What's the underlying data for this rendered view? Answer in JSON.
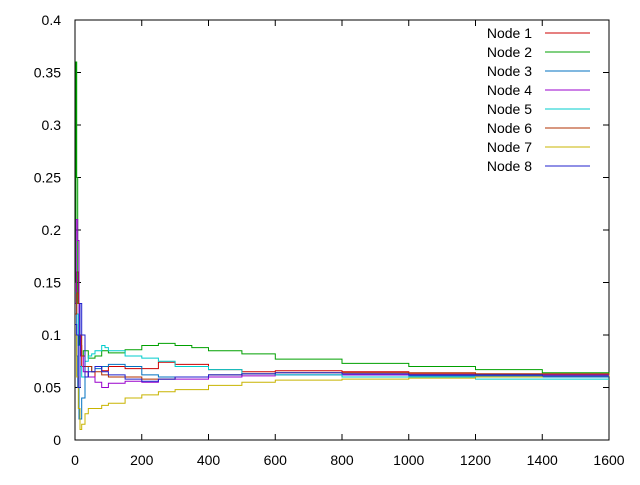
{
  "chart_data": {
    "type": "line",
    "title": "",
    "xlabel": "",
    "ylabel": "",
    "xlim": [
      0,
      1600
    ],
    "ylim": [
      0,
      0.4
    ],
    "grid": false,
    "legend_position": "top-right",
    "x_ticks": [
      0,
      200,
      400,
      600,
      800,
      1000,
      1200,
      1400,
      1600
    ],
    "y_ticks": [
      0,
      0.05,
      0.1,
      0.15,
      0.2,
      0.25,
      0.3,
      0.35,
      0.4
    ],
    "x_tick_labels": [
      "0",
      "200",
      "400",
      "600",
      "800",
      "1000",
      "1200",
      "1400",
      "1600"
    ],
    "y_tick_labels": [
      "0",
      "0.05",
      "0.1",
      "0.15",
      "0.2",
      "0.25",
      "0.3",
      "0.35",
      "0.4"
    ],
    "series": [
      {
        "name": "Node 1",
        "color": "#cc0000",
        "x": [
          1,
          5,
          10,
          15,
          20,
          30,
          40,
          60,
          80,
          100,
          150,
          200,
          250,
          300,
          400,
          500,
          600,
          800,
          1000,
          1200,
          1400,
          1600
        ],
        "y": [
          0.12,
          0.16,
          0.13,
          0.09,
          0.07,
          0.065,
          0.06,
          0.07,
          0.066,
          0.07,
          0.068,
          0.068,
          0.074,
          0.072,
          0.067,
          0.065,
          0.066,
          0.065,
          0.063,
          0.063,
          0.063,
          0.062
        ]
      },
      {
        "name": "Node 2",
        "color": "#00a000",
        "x": [
          1,
          3,
          5,
          8,
          12,
          18,
          25,
          40,
          60,
          80,
          100,
          150,
          200,
          250,
          300,
          350,
          400,
          500,
          600,
          800,
          1000,
          1200,
          1400,
          1600
        ],
        "y": [
          0.15,
          0.36,
          0.25,
          0.13,
          0.09,
          0.08,
          0.085,
          0.078,
          0.08,
          0.085,
          0.083,
          0.086,
          0.09,
          0.092,
          0.09,
          0.088,
          0.085,
          0.082,
          0.077,
          0.073,
          0.07,
          0.067,
          0.064,
          0.063
        ]
      },
      {
        "name": "Node 3",
        "color": "#0070c0",
        "x": [
          1,
          5,
          8,
          12,
          20,
          30,
          40,
          50,
          60,
          80,
          100,
          150,
          200,
          250,
          300,
          400,
          500,
          600,
          800,
          1000,
          1200,
          1400,
          1600
        ],
        "y": [
          0.12,
          0.08,
          0.05,
          0.02,
          0.04,
          0.06,
          0.07,
          0.065,
          0.068,
          0.07,
          0.072,
          0.07,
          0.062,
          0.06,
          0.06,
          0.062,
          0.063,
          0.062,
          0.062,
          0.061,
          0.061,
          0.06,
          0.06
        ]
      },
      {
        "name": "Node 4",
        "color": "#9900cc",
        "x": [
          1,
          4,
          8,
          12,
          18,
          25,
          40,
          60,
          80,
          100,
          150,
          200,
          250,
          300,
          400,
          500,
          600,
          800,
          1000,
          1200,
          1400,
          1600
        ],
        "y": [
          0.13,
          0.21,
          0.19,
          0.1,
          0.08,
          0.065,
          0.06,
          0.055,
          0.05,
          0.054,
          0.056,
          0.055,
          0.058,
          0.058,
          0.06,
          0.061,
          0.062,
          0.062,
          0.062,
          0.062,
          0.062,
          0.061
        ]
      },
      {
        "name": "Node 5",
        "color": "#00cccc",
        "x": [
          1,
          5,
          10,
          15,
          20,
          30,
          40,
          50,
          60,
          80,
          90,
          100,
          150,
          200,
          250,
          300,
          400,
          500,
          600,
          800,
          1000,
          1200,
          1400,
          1600
        ],
        "y": [
          0.14,
          0.12,
          0.09,
          0.07,
          0.06,
          0.075,
          0.08,
          0.082,
          0.085,
          0.09,
          0.088,
          0.085,
          0.08,
          0.078,
          0.075,
          0.07,
          0.067,
          0.063,
          0.062,
          0.06,
          0.06,
          0.058,
          0.058,
          0.058
        ]
      },
      {
        "name": "Node 6",
        "color": "#b03000",
        "x": [
          1,
          5,
          10,
          15,
          20,
          30,
          50,
          80,
          100,
          150,
          200,
          250,
          300,
          400,
          500,
          600,
          800,
          1000,
          1200,
          1400,
          1600
        ],
        "y": [
          0.12,
          0.14,
          0.13,
          0.1,
          0.08,
          0.07,
          0.065,
          0.062,
          0.06,
          0.06,
          0.058,
          0.058,
          0.06,
          0.062,
          0.063,
          0.064,
          0.064,
          0.064,
          0.063,
          0.063,
          0.062
        ]
      },
      {
        "name": "Node 7",
        "color": "#c8b400",
        "x": [
          1,
          5,
          10,
          15,
          20,
          30,
          40,
          60,
          80,
          100,
          150,
          200,
          250,
          300,
          400,
          500,
          600,
          800,
          1000,
          1200,
          1400,
          1600
        ],
        "y": [
          0.1,
          0.06,
          0.03,
          0.01,
          0.015,
          0.025,
          0.03,
          0.03,
          0.033,
          0.035,
          0.04,
          0.043,
          0.046,
          0.048,
          0.052,
          0.055,
          0.057,
          0.058,
          0.059,
          0.06,
          0.061,
          0.062
        ]
      },
      {
        "name": "Node 8",
        "color": "#2020cc",
        "x": [
          1,
          5,
          10,
          15,
          20,
          30,
          40,
          60,
          80,
          100,
          150,
          200,
          250,
          300,
          400,
          500,
          600,
          800,
          1000,
          1200,
          1400,
          1600
        ],
        "y": [
          0.11,
          0.1,
          0.05,
          0.13,
          0.1,
          0.06,
          0.065,
          0.07,
          0.065,
          0.062,
          0.058,
          0.056,
          0.058,
          0.06,
          0.062,
          0.063,
          0.064,
          0.063,
          0.062,
          0.062,
          0.061,
          0.061
        ]
      }
    ]
  }
}
